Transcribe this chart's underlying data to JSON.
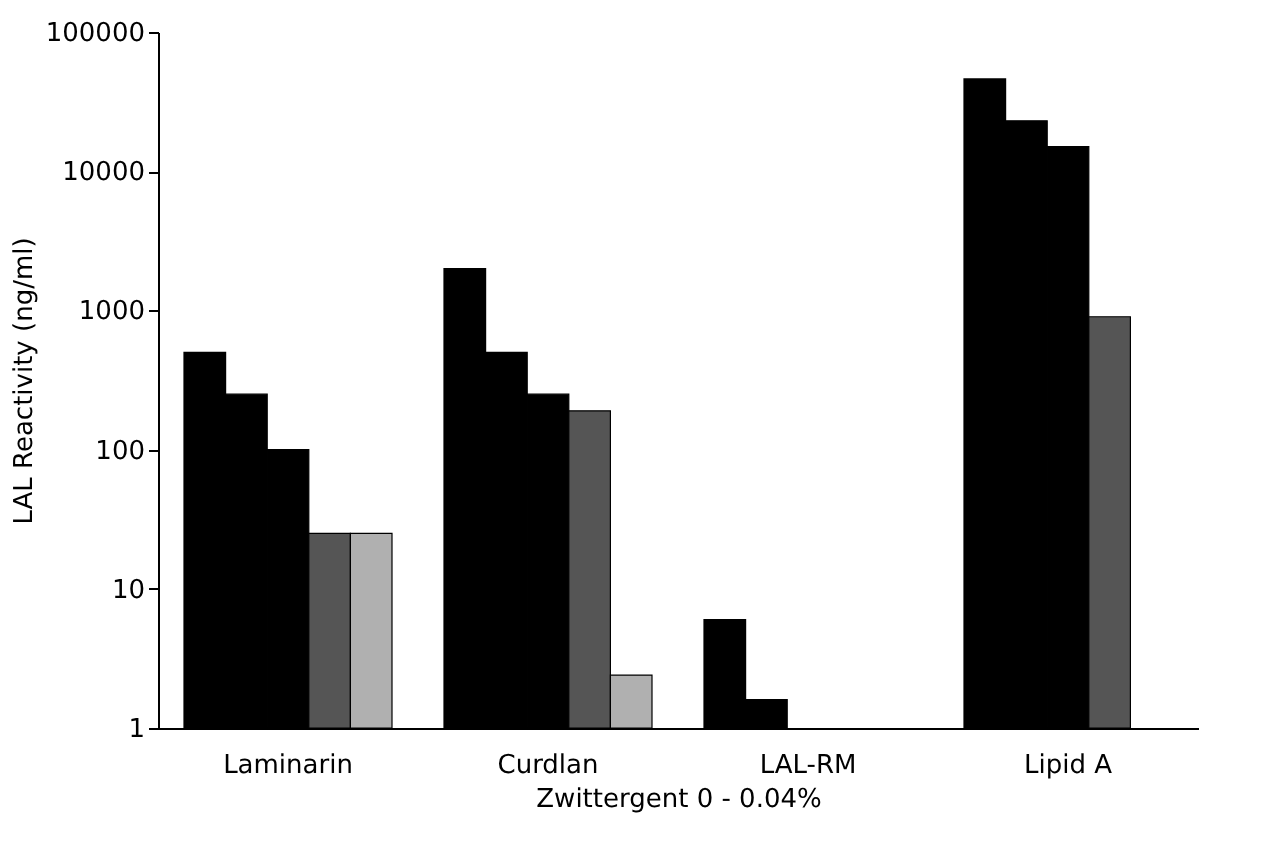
{
  "chart_data": {
    "type": "bar",
    "xlabel": "Zwittergent 0 - 0.04%",
    "ylabel": "LAL Reactivity (ng/ml)",
    "categories": [
      "Laminarin",
      "Curdlan",
      "LAL-RM",
      "Lipid A"
    ],
    "series": [
      {
        "color": "#000000",
        "values": [
          500,
          2000,
          6,
          46000
        ]
      },
      {
        "color": "#000000",
        "values": [
          250,
          500,
          1.6,
          23000
        ]
      },
      {
        "color": "#000000",
        "values": [
          100,
          250,
          null,
          15000
        ]
      },
      {
        "color": "#555555",
        "values": [
          25,
          190,
          null,
          900
        ]
      },
      {
        "color": "#b0b0b0",
        "values": [
          25,
          2.4,
          null,
          null
        ]
      }
    ],
    "log": "y",
    "ylim": [
      1,
      100000
    ],
    "yticks": [
      1,
      10,
      100,
      1000,
      10000,
      100000
    ],
    "grid": false,
    "legend": false
  }
}
